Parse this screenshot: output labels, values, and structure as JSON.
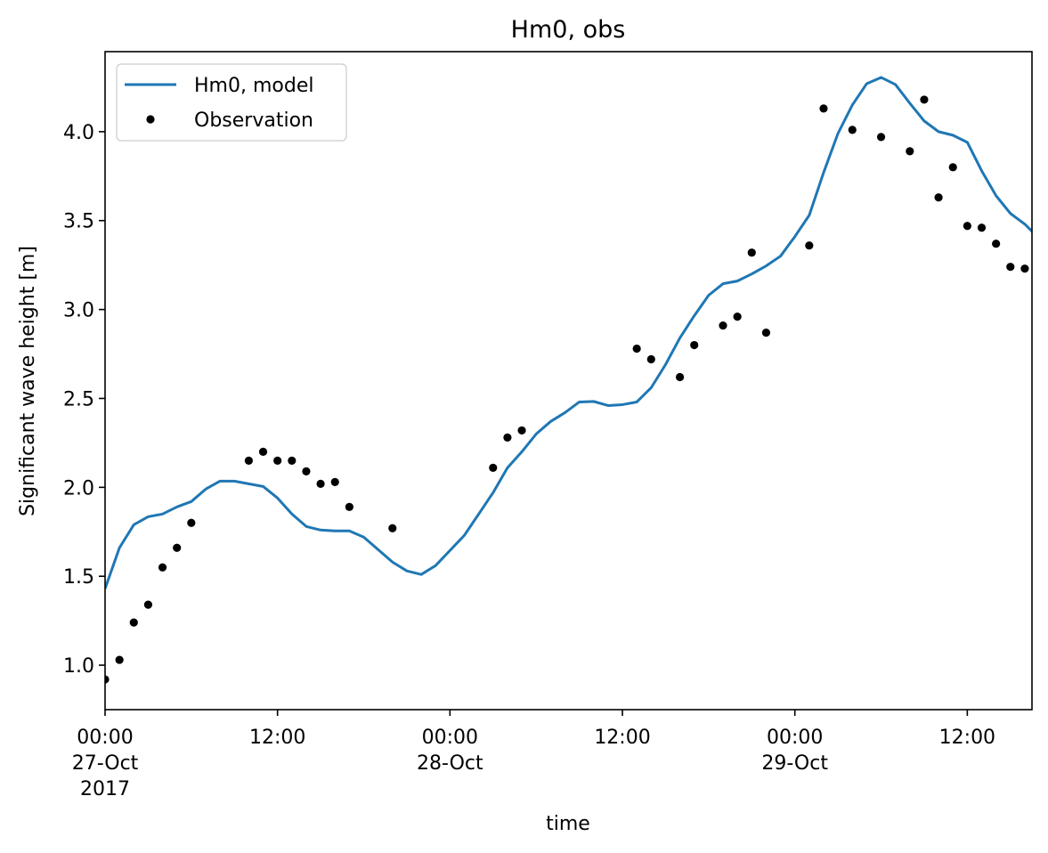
{
  "chart_data": {
    "type": "line",
    "title": "Hm0, obs",
    "xlabel": "time",
    "ylabel": "Significant wave height [m]",
    "xlim": [
      "2017-10-27 00:00",
      "2017-10-29 16:30"
    ],
    "ylim": [
      0.75,
      4.45
    ],
    "grid": false,
    "legend_position": "top-left",
    "x_ticks": [
      {
        "value": "2017-10-27 00:00",
        "lines": [
          "00:00",
          "27-Oct",
          "2017"
        ]
      },
      {
        "value": "2017-10-27 12:00",
        "lines": [
          "12:00"
        ]
      },
      {
        "value": "2017-10-28 00:00",
        "lines": [
          "00:00",
          "28-Oct"
        ]
      },
      {
        "value": "2017-10-28 12:00",
        "lines": [
          "12:00"
        ]
      },
      {
        "value": "2017-10-29 00:00",
        "lines": [
          "00:00",
          "29-Oct"
        ]
      },
      {
        "value": "2017-10-29 12:00",
        "lines": [
          "12:00"
        ]
      }
    ],
    "y_ticks": [
      {
        "value": 1.0,
        "label": "1.0"
      },
      {
        "value": 1.5,
        "label": "1.5"
      },
      {
        "value": 2.0,
        "label": "2.0"
      },
      {
        "value": 2.5,
        "label": "2.5"
      },
      {
        "value": 3.0,
        "label": "3.0"
      },
      {
        "value": 3.5,
        "label": "3.5"
      },
      {
        "value": 4.0,
        "label": "4.0"
      }
    ],
    "series": [
      {
        "name": "Hm0, model",
        "kind": "line",
        "color": "#1f77b4",
        "points": [
          [
            "2017-10-27 00:00",
            1.43
          ],
          [
            "2017-10-27 01:00",
            1.66
          ],
          [
            "2017-10-27 02:00",
            1.79
          ],
          [
            "2017-10-27 03:00",
            1.835
          ],
          [
            "2017-10-27 04:00",
            1.85
          ],
          [
            "2017-10-27 05:00",
            1.89
          ],
          [
            "2017-10-27 06:00",
            1.92
          ],
          [
            "2017-10-27 07:00",
            1.99
          ],
          [
            "2017-10-27 08:00",
            2.035
          ],
          [
            "2017-10-27 09:00",
            2.035
          ],
          [
            "2017-10-27 10:00",
            2.02
          ],
          [
            "2017-10-27 11:00",
            2.005
          ],
          [
            "2017-10-27 12:00",
            1.94
          ],
          [
            "2017-10-27 13:00",
            1.85
          ],
          [
            "2017-10-27 14:00",
            1.78
          ],
          [
            "2017-10-27 15:00",
            1.76
          ],
          [
            "2017-10-27 16:00",
            1.755
          ],
          [
            "2017-10-27 17:00",
            1.755
          ],
          [
            "2017-10-27 18:00",
            1.72
          ],
          [
            "2017-10-27 19:00",
            1.65
          ],
          [
            "2017-10-27 20:00",
            1.58
          ],
          [
            "2017-10-27 21:00",
            1.53
          ],
          [
            "2017-10-27 22:00",
            1.51
          ],
          [
            "2017-10-27 23:00",
            1.56
          ],
          [
            "2017-10-28 00:00",
            1.645
          ],
          [
            "2017-10-28 01:00",
            1.73
          ],
          [
            "2017-10-28 02:00",
            1.85
          ],
          [
            "2017-10-28 03:00",
            1.97
          ],
          [
            "2017-10-28 04:00",
            2.11
          ],
          [
            "2017-10-28 05:00",
            2.2
          ],
          [
            "2017-10-28 06:00",
            2.3
          ],
          [
            "2017-10-28 07:00",
            2.37
          ],
          [
            "2017-10-28 08:00",
            2.42
          ],
          [
            "2017-10-28 09:00",
            2.48
          ],
          [
            "2017-10-28 10:00",
            2.483
          ],
          [
            "2017-10-28 11:00",
            2.46
          ],
          [
            "2017-10-28 12:00",
            2.465
          ],
          [
            "2017-10-28 13:00",
            2.48
          ],
          [
            "2017-10-28 14:00",
            2.56
          ],
          [
            "2017-10-28 15:00",
            2.69
          ],
          [
            "2017-10-28 16:00",
            2.84
          ],
          [
            "2017-10-28 17:00",
            2.965
          ],
          [
            "2017-10-28 18:00",
            3.08
          ],
          [
            "2017-10-28 19:00",
            3.145
          ],
          [
            "2017-10-28 20:00",
            3.16
          ],
          [
            "2017-10-28 21:00",
            3.2
          ],
          [
            "2017-10-28 22:00",
            3.245
          ],
          [
            "2017-10-28 23:00",
            3.3
          ],
          [
            "2017-10-29 00:00",
            3.41
          ],
          [
            "2017-10-29 01:00",
            3.53
          ],
          [
            "2017-10-29 02:00",
            3.77
          ],
          [
            "2017-10-29 03:00",
            3.99
          ],
          [
            "2017-10-29 04:00",
            4.15
          ],
          [
            "2017-10-29 05:00",
            4.27
          ],
          [
            "2017-10-29 06:00",
            4.305
          ],
          [
            "2017-10-29 07:00",
            4.265
          ],
          [
            "2017-10-29 08:00",
            4.16
          ],
          [
            "2017-10-29 09:00",
            4.06
          ],
          [
            "2017-10-29 10:00",
            4.0
          ],
          [
            "2017-10-29 11:00",
            3.98
          ],
          [
            "2017-10-29 12:00",
            3.94
          ],
          [
            "2017-10-29 13:00",
            3.78
          ],
          [
            "2017-10-29 14:00",
            3.64
          ],
          [
            "2017-10-29 15:00",
            3.54
          ],
          [
            "2017-10-29 16:00",
            3.48
          ],
          [
            "2017-10-29 17:00",
            3.4
          ],
          [
            "2017-10-29 18:00",
            3.31
          ]
        ]
      },
      {
        "name": "Observation",
        "kind": "scatter",
        "color": "#000000",
        "points": [
          [
            "2017-10-27 00:00",
            0.92
          ],
          [
            "2017-10-27 01:00",
            1.03
          ],
          [
            "2017-10-27 02:00",
            1.24
          ],
          [
            "2017-10-27 03:00",
            1.34
          ],
          [
            "2017-10-27 04:00",
            1.55
          ],
          [
            "2017-10-27 05:00",
            1.66
          ],
          [
            "2017-10-27 06:00",
            1.8
          ],
          [
            "2017-10-27 10:00",
            2.15
          ],
          [
            "2017-10-27 11:00",
            2.2
          ],
          [
            "2017-10-27 12:00",
            2.15
          ],
          [
            "2017-10-27 13:00",
            2.15
          ],
          [
            "2017-10-27 14:00",
            2.09
          ],
          [
            "2017-10-27 15:00",
            2.02
          ],
          [
            "2017-10-27 16:00",
            2.03
          ],
          [
            "2017-10-27 17:00",
            1.89
          ],
          [
            "2017-10-27 20:00",
            1.77
          ],
          [
            "2017-10-28 03:00",
            2.11
          ],
          [
            "2017-10-28 04:00",
            2.28
          ],
          [
            "2017-10-28 05:00",
            2.32
          ],
          [
            "2017-10-28 13:00",
            2.78
          ],
          [
            "2017-10-28 14:00",
            2.72
          ],
          [
            "2017-10-28 16:00",
            2.62
          ],
          [
            "2017-10-28 17:00",
            2.8
          ],
          [
            "2017-10-28 19:00",
            2.91
          ],
          [
            "2017-10-28 20:00",
            2.96
          ],
          [
            "2017-10-28 21:00",
            3.32
          ],
          [
            "2017-10-28 22:00",
            2.87
          ],
          [
            "2017-10-29 01:00",
            3.36
          ],
          [
            "2017-10-29 02:00",
            4.13
          ],
          [
            "2017-10-29 04:00",
            4.01
          ],
          [
            "2017-10-29 06:00",
            3.97
          ],
          [
            "2017-10-29 08:00",
            3.89
          ],
          [
            "2017-10-29 09:00",
            4.18
          ],
          [
            "2017-10-29 10:00",
            3.63
          ],
          [
            "2017-10-29 11:00",
            3.8
          ],
          [
            "2017-10-29 12:00",
            3.47
          ],
          [
            "2017-10-29 13:00",
            3.46
          ],
          [
            "2017-10-29 14:00",
            3.37
          ],
          [
            "2017-10-29 15:00",
            3.24
          ],
          [
            "2017-10-29 16:00",
            3.23
          ]
        ]
      }
    ]
  }
}
